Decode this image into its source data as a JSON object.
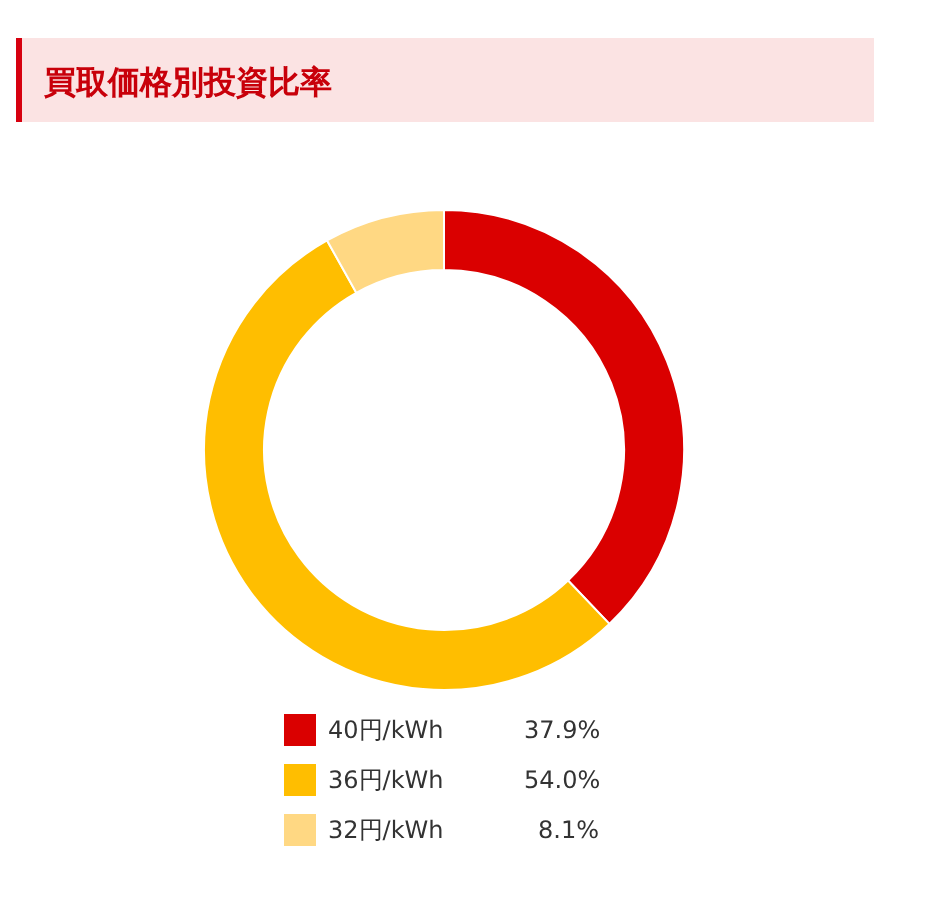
{
  "chart_data": {
    "type": "donut",
    "title": "買取価格別投資比率",
    "categories": [
      "40円/kWh",
      "36円/kWh",
      "32円/kWh"
    ],
    "values": [
      37.9,
      54.0,
      8.1
    ],
    "colors": [
      "#da0000",
      "#ffbe00",
      "#ffd883"
    ],
    "value_labels": [
      "37.9%",
      "54.0%",
      "8.1%"
    ],
    "legend": "bottom"
  }
}
